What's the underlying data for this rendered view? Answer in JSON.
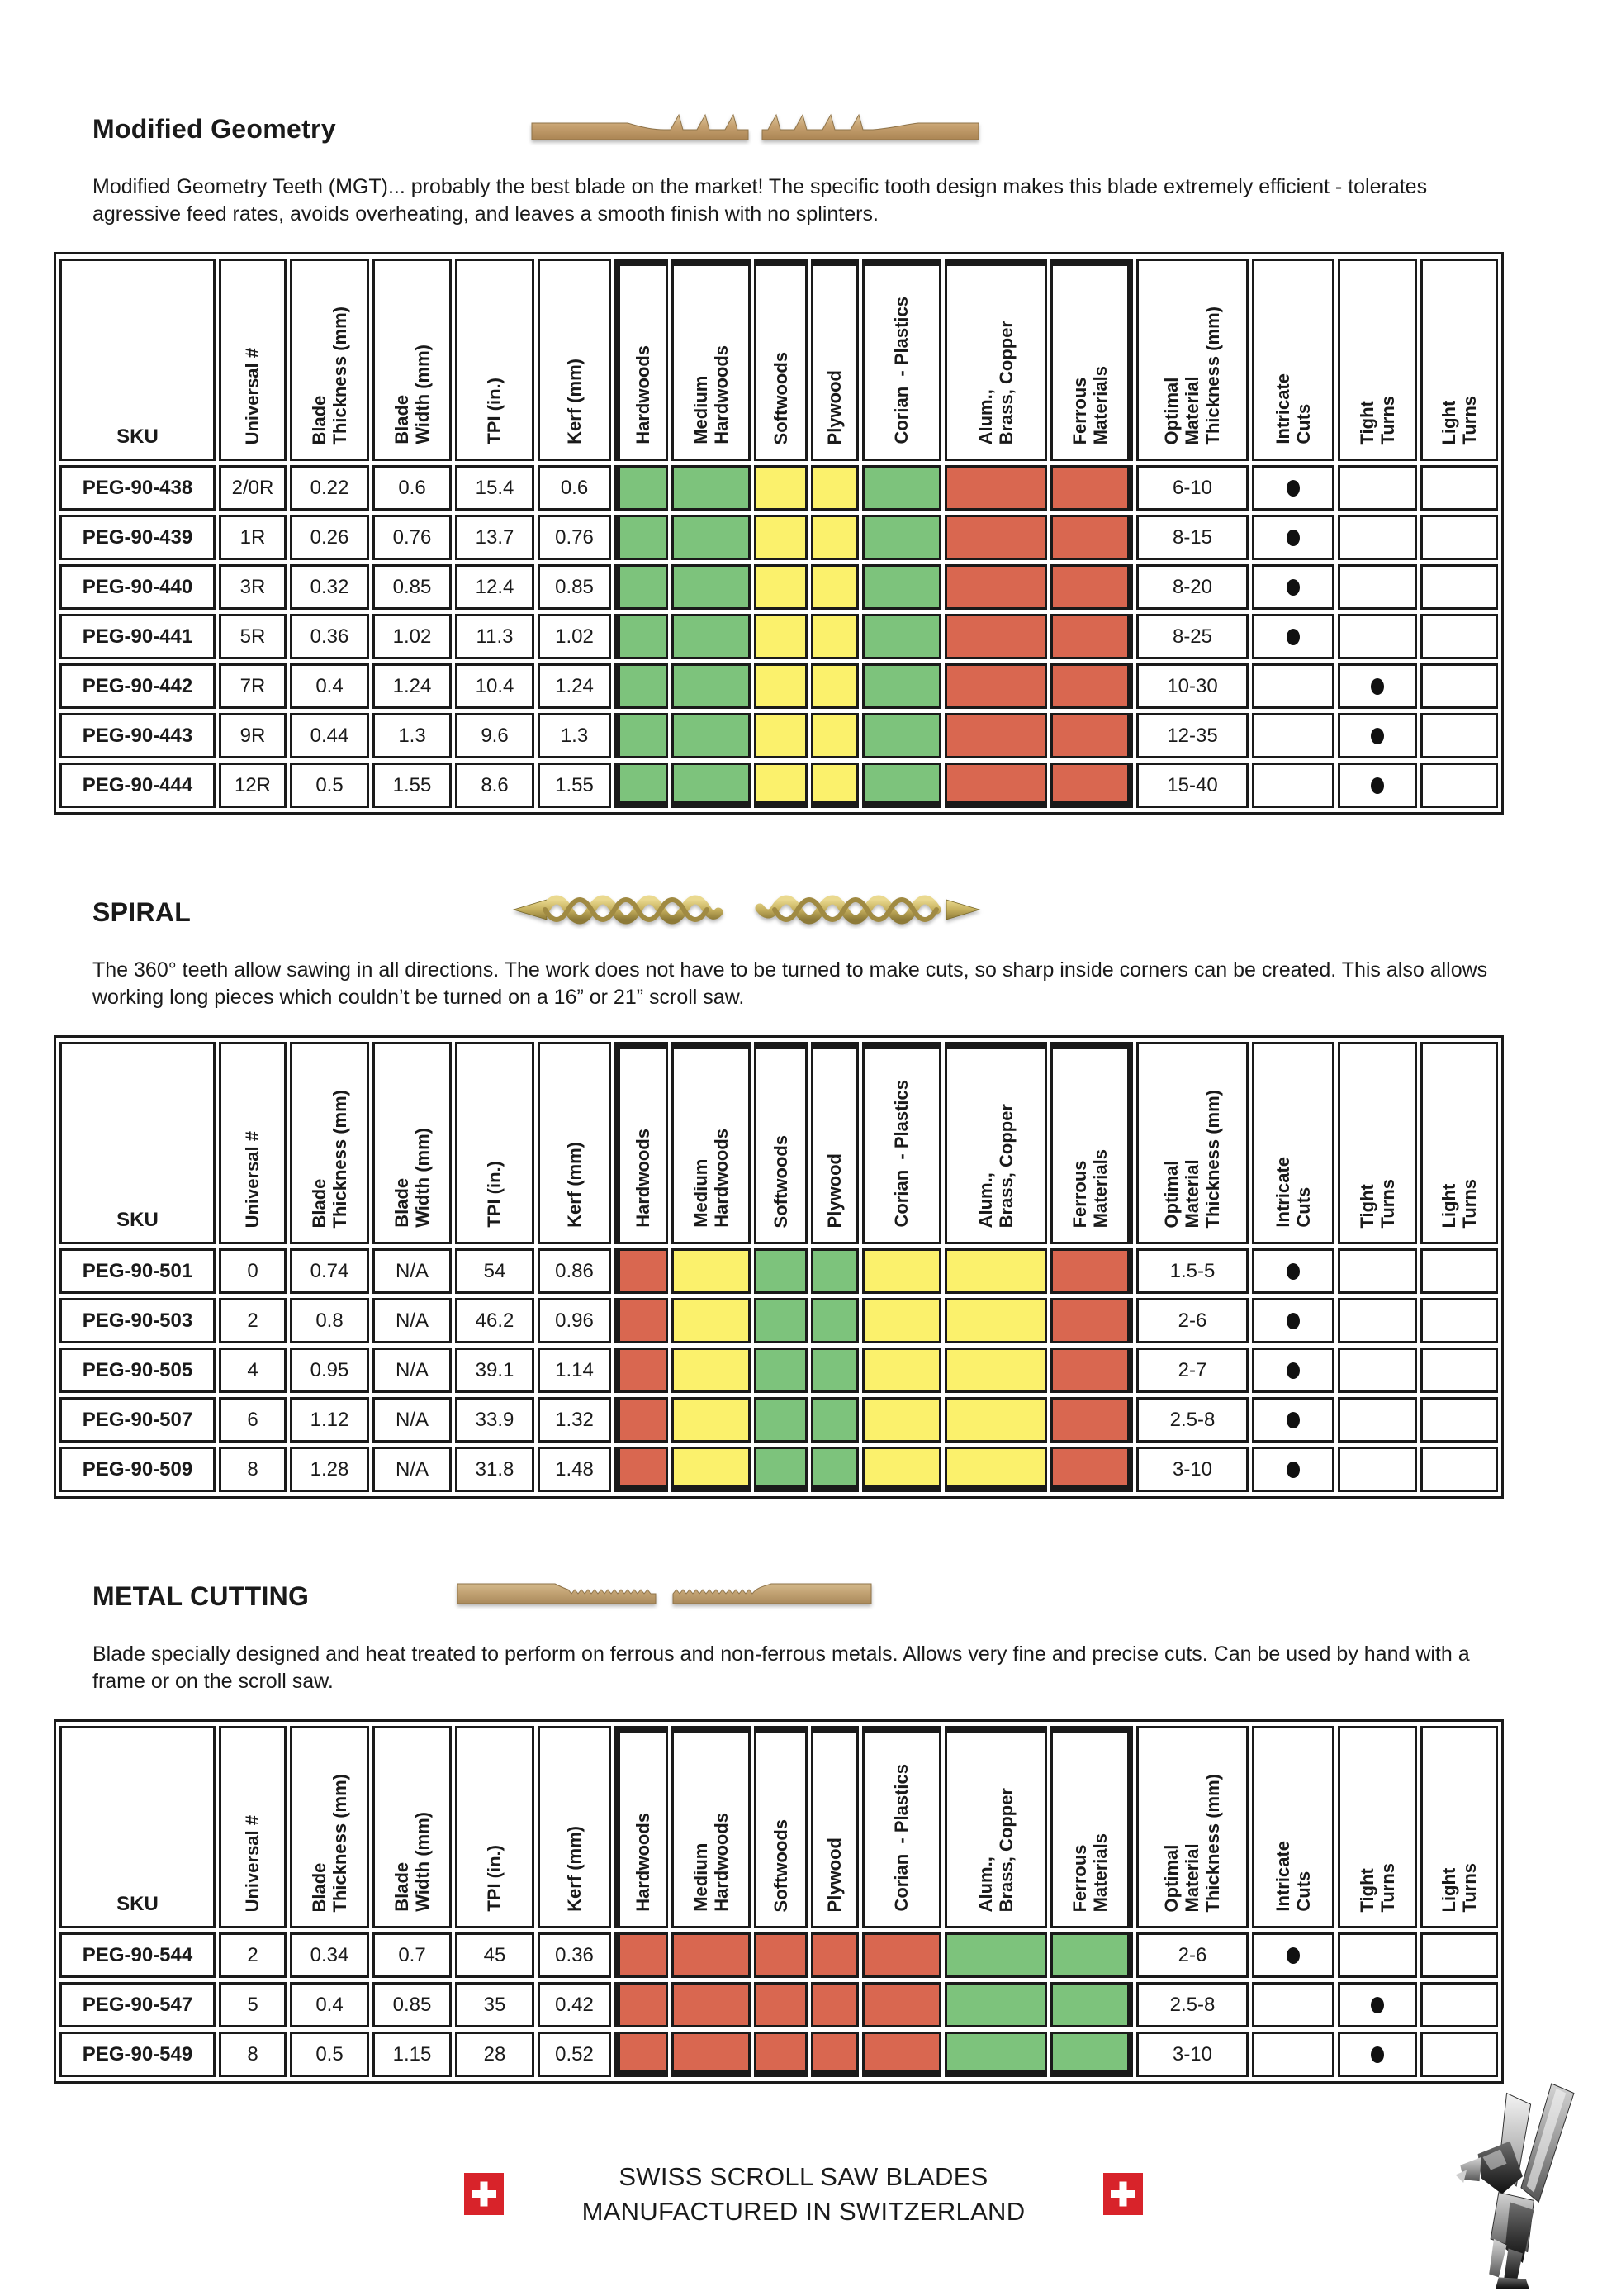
{
  "colors": {
    "green": "#7dc37c",
    "yellow": "#fbf16c",
    "red": "#d96750",
    "border": "#1a1a1a",
    "flag_red": "#d8232a"
  },
  "table_columns": [
    {
      "id": "sku",
      "label_lines": [
        "SKU"
      ],
      "rotated": false
    },
    {
      "id": "universal",
      "label_lines": [
        "Universal #"
      ],
      "rotated": true
    },
    {
      "id": "blade_thickness",
      "label_lines": [
        "Blade",
        "Thickness (mm)"
      ],
      "rotated": true
    },
    {
      "id": "blade_width",
      "label_lines": [
        "Blade",
        "Width (mm)"
      ],
      "rotated": true
    },
    {
      "id": "tpi",
      "label_lines": [
        "TPI (in.)"
      ],
      "rotated": true
    },
    {
      "id": "kerf",
      "label_lines": [
        "Kerf (mm)"
      ],
      "rotated": true
    },
    {
      "id": "hardwoods",
      "label_lines": [
        "Hardwoods"
      ],
      "rotated": true,
      "material": true
    },
    {
      "id": "medium_hardwoods",
      "label_lines": [
        "Medium",
        "Hardwoods"
      ],
      "rotated": true,
      "material": true
    },
    {
      "id": "softwoods",
      "label_lines": [
        "Softwoods"
      ],
      "rotated": true,
      "material": true
    },
    {
      "id": "plywood",
      "label_lines": [
        "Plywood"
      ],
      "rotated": true,
      "material": true
    },
    {
      "id": "corian_plastics",
      "label_lines": [
        "Corian  - Plastics"
      ],
      "rotated": true,
      "material": true
    },
    {
      "id": "alum_brass_copper",
      "label_lines": [
        "Alum.,",
        "Brass, Copper"
      ],
      "rotated": true,
      "material": true
    },
    {
      "id": "ferrous",
      "label_lines": [
        "Ferrous",
        "Materials"
      ],
      "rotated": true,
      "material": true
    },
    {
      "id": "optimal",
      "label_lines": [
        "Optimal",
        "Material",
        "Thickness (mm)"
      ],
      "rotated": true
    },
    {
      "id": "intricate",
      "label_lines": [
        "Intricate",
        "Cuts"
      ],
      "rotated": true
    },
    {
      "id": "tight",
      "label_lines": [
        "Tight",
        "Turns"
      ],
      "rotated": true
    },
    {
      "id": "light",
      "label_lines": [
        "Light",
        "Turns"
      ],
      "rotated": true
    }
  ],
  "sections": [
    {
      "title": "Modified Geometry",
      "blade_art": "mgt",
      "description": "Modified Geometry Teeth (MGT)... probably the best blade on the market! The specific tooth design makes this blade extremely efficient - tolerates agressive feed rates, avoids overheating, and leaves a smooth finish with no splinters.",
      "materials": [
        "green",
        "green",
        "yellow",
        "yellow",
        "green",
        "red",
        "red"
      ],
      "rows": [
        {
          "sku": "PEG-90-438",
          "universal": "2/0R",
          "blade_thickness": "0.22",
          "blade_width": "0.6",
          "tpi": "15.4",
          "kerf": "0.6",
          "optimal": "6-10",
          "intricate": true,
          "tight": false,
          "light": false
        },
        {
          "sku": "PEG-90-439",
          "universal": "1R",
          "blade_thickness": "0.26",
          "blade_width": "0.76",
          "tpi": "13.7",
          "kerf": "0.76",
          "optimal": "8-15",
          "intricate": true,
          "tight": false,
          "light": false
        },
        {
          "sku": "PEG-90-440",
          "universal": "3R",
          "blade_thickness": "0.32",
          "blade_width": "0.85",
          "tpi": "12.4",
          "kerf": "0.85",
          "optimal": "8-20",
          "intricate": true,
          "tight": false,
          "light": false
        },
        {
          "sku": "PEG-90-441",
          "universal": "5R",
          "blade_thickness": "0.36",
          "blade_width": "1.02",
          "tpi": "11.3",
          "kerf": "1.02",
          "optimal": "8-25",
          "intricate": true,
          "tight": false,
          "light": false
        },
        {
          "sku": "PEG-90-442",
          "universal": "7R",
          "blade_thickness": "0.4",
          "blade_width": "1.24",
          "tpi": "10.4",
          "kerf": "1.24",
          "optimal": "10-30",
          "intricate": false,
          "tight": true,
          "light": false
        },
        {
          "sku": "PEG-90-443",
          "universal": "9R",
          "blade_thickness": "0.44",
          "blade_width": "1.3",
          "tpi": "9.6",
          "kerf": "1.3",
          "optimal": "12-35",
          "intricate": false,
          "tight": true,
          "light": false
        },
        {
          "sku": "PEG-90-444",
          "universal": "12R",
          "blade_thickness": "0.5",
          "blade_width": "1.55",
          "tpi": "8.6",
          "kerf": "1.55",
          "optimal": "15-40",
          "intricate": false,
          "tight": true,
          "light": false
        }
      ]
    },
    {
      "title": "SPIRAL",
      "blade_art": "spiral",
      "description": "The 360° teeth allow sawing in all directions. The work does not have to be turned to make cuts, so sharp inside corners can be created. This also allows working long pieces which couldn’t be turned on a 16” or 21” scroll saw.",
      "materials": [
        "red",
        "yellow",
        "green",
        "green",
        "yellow",
        "yellow",
        "red"
      ],
      "rows": [
        {
          "sku": "PEG-90-501",
          "universal": "0",
          "blade_thickness": "0.74",
          "blade_width": "N/A",
          "tpi": "54",
          "kerf": "0.86",
          "optimal": "1.5-5",
          "intricate": true,
          "tight": false,
          "light": false
        },
        {
          "sku": "PEG-90-503",
          "universal": "2",
          "blade_thickness": "0.8",
          "blade_width": "N/A",
          "tpi": "46.2",
          "kerf": "0.96",
          "optimal": "2-6",
          "intricate": true,
          "tight": false,
          "light": false
        },
        {
          "sku": "PEG-90-505",
          "universal": "4",
          "blade_thickness": "0.95",
          "blade_width": "N/A",
          "tpi": "39.1",
          "kerf": "1.14",
          "optimal": "2-7",
          "intricate": true,
          "tight": false,
          "light": false
        },
        {
          "sku": "PEG-90-507",
          "universal": "6",
          "blade_thickness": "1.12",
          "blade_width": "N/A",
          "tpi": "33.9",
          "kerf": "1.32",
          "optimal": "2.5-8",
          "intricate": true,
          "tight": false,
          "light": false
        },
        {
          "sku": "PEG-90-509",
          "universal": "8",
          "blade_thickness": "1.28",
          "blade_width": "N/A",
          "tpi": "31.8",
          "kerf": "1.48",
          "optimal": "3-10",
          "intricate": true,
          "tight": false,
          "light": false
        }
      ]
    },
    {
      "title": "METAL CUTTING",
      "blade_art": "metal",
      "description": "Blade specially designed and heat treated to perform on ferrous and non-ferrous metals. Allows very fine and precise cuts. Can be used by hand with a frame or on the scroll saw.",
      "materials": [
        "red",
        "red",
        "red",
        "red",
        "red",
        "green",
        "green"
      ],
      "rows": [
        {
          "sku": "PEG-90-544",
          "universal": "2",
          "blade_thickness": "0.34",
          "blade_width": "0.7",
          "tpi": "45",
          "kerf": "0.36",
          "optimal": "2-6",
          "intricate": true,
          "tight": false,
          "light": false
        },
        {
          "sku": "PEG-90-547",
          "universal": "5",
          "blade_thickness": "0.4",
          "blade_width": "0.85",
          "tpi": "35",
          "kerf": "0.42",
          "optimal": "2.5-8",
          "intricate": false,
          "tight": true,
          "light": false
        },
        {
          "sku": "PEG-90-549",
          "universal": "8",
          "blade_thickness": "0.5",
          "blade_width": "1.15",
          "tpi": "28",
          "kerf": "0.52",
          "optimal": "3-10",
          "intricate": false,
          "tight": true,
          "light": false
        }
      ]
    }
  ],
  "footer": {
    "line1": "SWISS SCROLL SAW BLADES",
    "line2": "MANUFACTURED IN SWITZERLAND"
  }
}
